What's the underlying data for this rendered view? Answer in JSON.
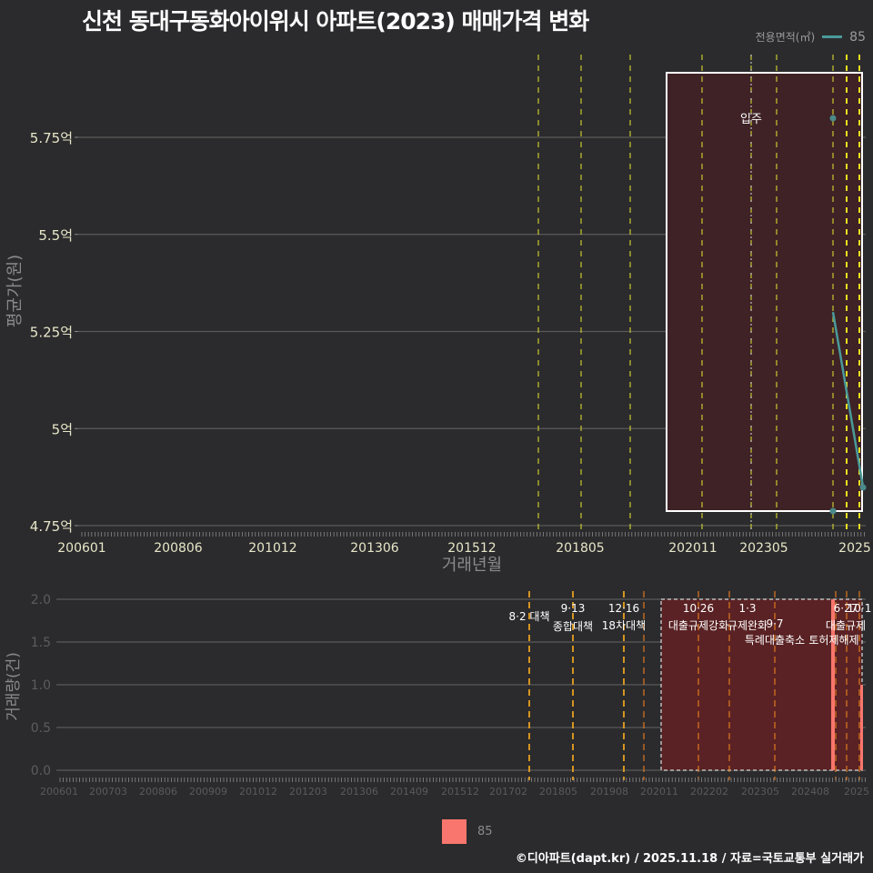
{
  "title": "신천 동대구동화아이위시 아파트(2023) 매매가격 변화",
  "legend_top": {
    "label": "전용면적(㎡)",
    "value": "85",
    "color": "#4a9a9a"
  },
  "legend_bottom": {
    "value": "85",
    "color": "#f8766d"
  },
  "footer": "©디아파트(dapt.kr) / 2025.11.18 / 자료=국토교통부 실거래가",
  "chart_data": [
    {
      "type": "line",
      "title": "신천 동대구동화아이위시 아파트(2023) 매매가격 변화",
      "xlabel": "거래년월",
      "ylabel": "평균가(원)",
      "ylim": [
        4.75,
        5.9
      ],
      "y_ticks": [
        "4.75억",
        "5억",
        "5.25억",
        "5.5억",
        "5.75억"
      ],
      "y_tick_values": [
        4.75,
        5.0,
        5.25,
        5.5,
        5.75
      ],
      "x_ticks": [
        "200601",
        "200806",
        "201012",
        "201306",
        "201512",
        "201805",
        "202011",
        "202305",
        "2025"
      ],
      "series": [
        {
          "name": "85",
          "points": [
            {
              "x": "202410",
              "y": 5.3
            },
            {
              "x": "202510",
              "y": 4.85
            }
          ],
          "extra_points": [
            {
              "x": "202410",
              "y": 5.8
            },
            {
              "x": "202410",
              "y": 4.79
            }
          ]
        }
      ],
      "annotation": {
        "label": "입주",
        "x": "202305"
      },
      "highlight_box": {
        "from": "202012",
        "to": "202511"
      },
      "event_lines": [
        "201708",
        "201809",
        "201912",
        "202110",
        "202305",
        "202309",
        "202410",
        "202412",
        "202510"
      ]
    },
    {
      "type": "bar",
      "ylabel": "거래량(건)",
      "ylim": [
        0,
        2.0
      ],
      "y_ticks": [
        "0.0",
        "0.5",
        "1.0",
        "1.5",
        "2.0"
      ],
      "x_ticks": [
        "200601",
        "200703",
        "200806",
        "200909",
        "201012",
        "201203",
        "201306",
        "201409",
        "201512",
        "201702",
        "201805",
        "201908",
        "202011",
        "202202",
        "202305",
        "202408",
        "2025"
      ],
      "series": [
        {
          "name": "85",
          "values": [
            {
              "x": "202410",
              "y": 2
            },
            {
              "x": "202510",
              "y": 1
            }
          ]
        }
      ],
      "events": [
        {
          "date": "201708",
          "label_date": "",
          "label": "8·2 대책"
        },
        {
          "date": "201809",
          "label_date": "9·13",
          "label": "종합대책"
        },
        {
          "date": "201912",
          "label_date": "12·16",
          "label": "18차대책"
        },
        {
          "date": "202006",
          "label_date": "",
          "label": ""
        },
        {
          "date": "202110",
          "label_date": "10·26",
          "label": "대출규제강화"
        },
        {
          "date": "202301",
          "label_date": "1·3",
          "label": "규제완화"
        },
        {
          "date": "202309",
          "label_date": "9·7",
          "label": "특례대출축소"
        },
        {
          "date": "202502",
          "label_date": "",
          "label": "토허제해제"
        },
        {
          "date": "202506",
          "label_date": "6·27",
          "label": "대출규제"
        },
        {
          "date": "202510",
          "label_date": "10·1",
          "label": ""
        }
      ]
    }
  ]
}
